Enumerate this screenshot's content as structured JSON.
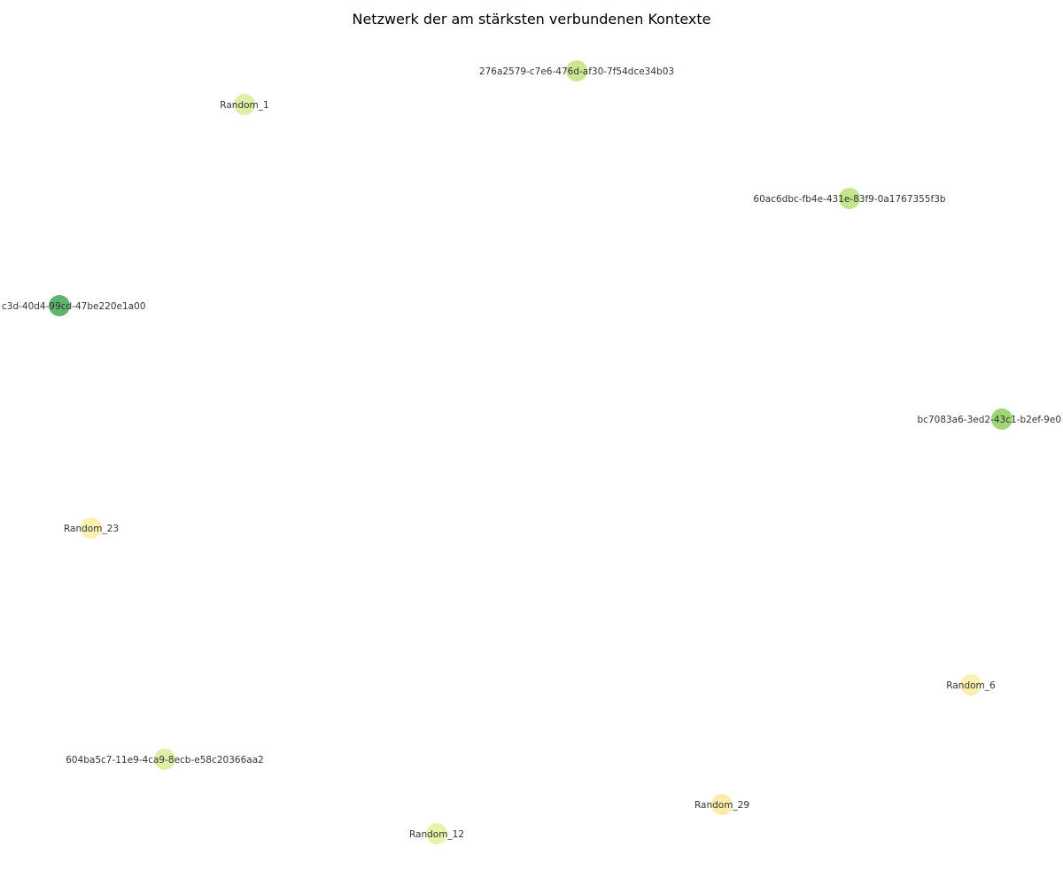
{
  "title": "Netzwerk der am stärksten verbundenen Kontexte",
  "nodes": [
    {
      "id": "n1",
      "label": "276a2579-c7e6-476d-af30-7f54dce34b03",
      "color": "#c5e487"
    },
    {
      "id": "n2",
      "label": "Random_1",
      "color": "#dcee9c"
    },
    {
      "id": "n3",
      "label": "60ac6dbc-fb4e-431e-83f9-0a1767355f3b",
      "color": "#bfe27f"
    },
    {
      "id": "n4",
      "label": "c3d-40d4-99cd-47be220e1a00",
      "color": "#4eac5b"
    },
    {
      "id": "n5",
      "label": "bc7083a6-3ed2-43c1-b2ef-9e0",
      "color": "#94d068"
    },
    {
      "id": "n6",
      "label": "Random_23",
      "color": "#fbeeaa"
    },
    {
      "id": "n7",
      "label": "Random_6",
      "color": "#fbeeaa"
    },
    {
      "id": "n8",
      "label": "604ba5c7-11e9-4ca9-8ecb-e58c20366aa2",
      "color": "#dcee9c"
    },
    {
      "id": "n9",
      "label": "Random_29",
      "color": "#fbeaa3"
    },
    {
      "id": "n10",
      "label": "Random_12",
      "color": "#e3f2a2"
    }
  ]
}
